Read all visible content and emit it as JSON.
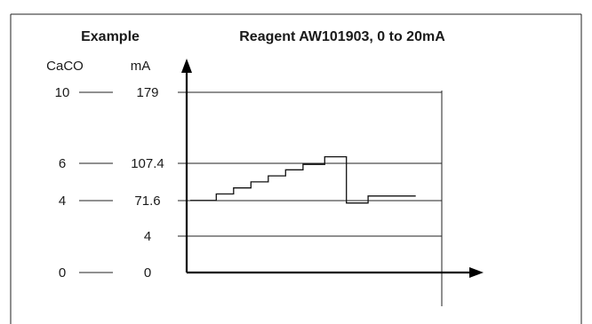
{
  "chart_data": {
    "type": "line",
    "example_label": "Example",
    "title": "Reagent AW101903, 0 to 20mA",
    "left_axis_header": "CaCO",
    "right_axis_header": "mA",
    "rows": [
      {
        "caco": "10",
        "ma": "179"
      },
      {
        "caco": "6",
        "ma": "107.4"
      },
      {
        "caco": "4",
        "ma": "71.6"
      },
      {
        "caco": "",
        "ma": "4"
      },
      {
        "caco": "0",
        "ma": "0"
      }
    ],
    "ylim": [
      0,
      179
    ],
    "xlim": [
      0,
      290
    ],
    "series": [
      {
        "x": [
          0,
          30,
          30,
          50,
          50,
          70,
          70,
          90,
          90,
          110,
          110,
          130,
          130,
          155,
          155,
          180,
          180,
          205,
          205,
          260
        ],
        "y": [
          71.6,
          71.6,
          78,
          78,
          84,
          84,
          90,
          90,
          96,
          96,
          102,
          102,
          107.4,
          107.4,
          115,
          115,
          69,
          69,
          76,
          76
        ]
      }
    ]
  }
}
